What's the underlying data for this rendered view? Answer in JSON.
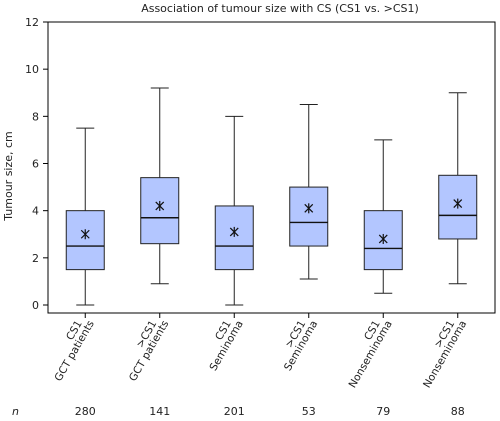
{
  "chart_data": {
    "type": "boxplot",
    "title": "Association of tumour size with CS (CS1 vs. >CS1)",
    "ylabel": "Tumour size, cm",
    "ylim": [
      0,
      12
    ],
    "yticks": [
      0,
      2,
      4,
      6,
      8,
      10,
      12
    ],
    "grid": false,
    "box_color": "#b3c6ff",
    "categories": [
      {
        "line1": "CS1",
        "line2": "GCT patients"
      },
      {
        "line1": ">CS1",
        "line2": "GCT patients"
      },
      {
        "line1": "CS1",
        "line2": "Seminoma"
      },
      {
        "line1": ">CS1",
        "line2": "Seminoma"
      },
      {
        "line1": "CS1",
        "line2": "Nonseminoma"
      },
      {
        "line1": ">CS1",
        "line2": "Nonseminoma"
      }
    ],
    "boxes": [
      {
        "min": 0.0,
        "q1": 1.5,
        "median": 2.5,
        "q3": 4.0,
        "max": 7.5,
        "mean": 3.0
      },
      {
        "min": 0.9,
        "q1": 2.6,
        "median": 3.7,
        "q3": 5.4,
        "max": 9.2,
        "mean": 4.2
      },
      {
        "min": 0.0,
        "q1": 1.5,
        "median": 2.5,
        "q3": 4.2,
        "max": 8.0,
        "mean": 3.1
      },
      {
        "min": 1.1,
        "q1": 2.5,
        "median": 3.5,
        "q3": 5.0,
        "max": 8.5,
        "mean": 4.1
      },
      {
        "min": 0.5,
        "q1": 1.5,
        "median": 2.4,
        "q3": 4.0,
        "max": 7.0,
        "mean": 2.8
      },
      {
        "min": 0.9,
        "q1": 2.8,
        "median": 3.8,
        "q3": 5.5,
        "max": 9.0,
        "mean": 4.3
      }
    ],
    "n_label": "n",
    "n_values": [
      "280",
      "141",
      "201",
      "53",
      "79",
      "88"
    ]
  }
}
